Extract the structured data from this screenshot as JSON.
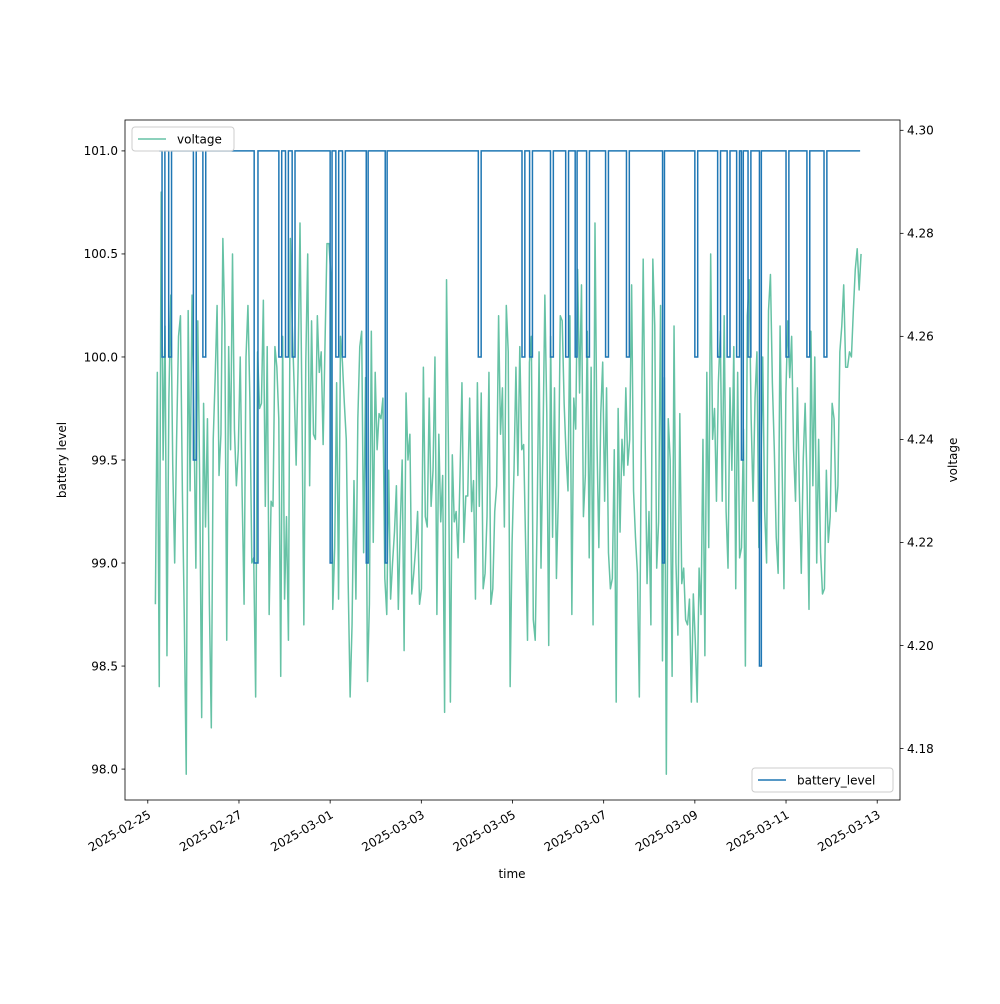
{
  "chart_data": {
    "type": "line",
    "xlabel": "time",
    "ylabel_left": "battery level",
    "ylabel_right": "voltage",
    "x_ticks": [
      "2025-02-25",
      "2025-02-27",
      "2025-03-01",
      "2025-03-03",
      "2025-03-05",
      "2025-03-07",
      "2025-03-09",
      "2025-03-11",
      "2025-03-13"
    ],
    "y_left_ticks": [
      "98.0",
      "98.5",
      "99.0",
      "99.5",
      "100.0",
      "100.5",
      "101.0"
    ],
    "y_right_ticks": [
      "4.18",
      "4.20",
      "4.22",
      "4.24",
      "4.26",
      "4.28",
      "4.30"
    ],
    "xlim": [
      "2025-02-24T12:00",
      "2025-03-13T12:00"
    ],
    "ylim_left": [
      97.85,
      101.15
    ],
    "ylim_right": [
      4.17,
      4.302
    ],
    "legend_left": "top-left",
    "legend_right": "bottom-right",
    "grid": false,
    "series": [
      {
        "name": "battery_level",
        "axis": "left",
        "color": "#1f77b4",
        "x_start": "2025-02-25T06:00",
        "x_end": "2025-03-12T15:00",
        "baseline": 101,
        "dips": [
          {
            "start": "2025-02-25T07:30",
            "end": "2025-02-25T09:00",
            "value": 100
          },
          {
            "start": "2025-02-25T11:00",
            "end": "2025-02-25T12:30",
            "value": 100
          },
          {
            "start": "2025-02-26T00:00",
            "end": "2025-02-26T01:30",
            "value": 99.5
          },
          {
            "start": "2025-02-26T05:00",
            "end": "2025-02-26T06:30",
            "value": 100
          },
          {
            "start": "2025-02-27T08:00",
            "end": "2025-02-27T10:00",
            "value": 99
          },
          {
            "start": "2025-02-27T21:00",
            "end": "2025-02-27T22:30",
            "value": 100
          },
          {
            "start": "2025-02-28T00:30",
            "end": "2025-02-28T02:00",
            "value": 100
          },
          {
            "start": "2025-02-28T04:00",
            "end": "2025-02-28T05:30",
            "value": 100
          },
          {
            "start": "2025-03-01T00:00",
            "end": "2025-03-01T01:00",
            "value": 99
          },
          {
            "start": "2025-03-01T03:00",
            "end": "2025-03-01T04:30",
            "value": 100
          },
          {
            "start": "2025-03-01T06:30",
            "end": "2025-03-01T08:00",
            "value": 100
          },
          {
            "start": "2025-03-01T19:00",
            "end": "2025-03-01T20:00",
            "value": 99
          },
          {
            "start": "2025-03-02T05:00",
            "end": "2025-03-02T06:00",
            "value": 99
          },
          {
            "start": "2025-03-04T06:00",
            "end": "2025-03-04T07:30",
            "value": 100
          },
          {
            "start": "2025-03-05T05:00",
            "end": "2025-03-05T06:30",
            "value": 100
          },
          {
            "start": "2025-03-05T09:00",
            "end": "2025-03-05T10:30",
            "value": 100
          },
          {
            "start": "2025-03-05T20:00",
            "end": "2025-03-05T21:30",
            "value": 100
          },
          {
            "start": "2025-03-06T04:00",
            "end": "2025-03-06T05:30",
            "value": 100
          },
          {
            "start": "2025-03-06T09:00",
            "end": "2025-03-06T10:00",
            "value": 100
          },
          {
            "start": "2025-03-06T15:00",
            "end": "2025-03-06T16:30",
            "value": 100
          },
          {
            "start": "2025-03-07T01:00",
            "end": "2025-03-07T02:30",
            "value": 100
          },
          {
            "start": "2025-03-07T12:00",
            "end": "2025-03-07T13:30",
            "value": 100
          },
          {
            "start": "2025-03-08T07:00",
            "end": "2025-03-08T08:00",
            "value": 99
          },
          {
            "start": "2025-03-09T00:00",
            "end": "2025-03-09T01:30",
            "value": 100
          },
          {
            "start": "2025-03-09T12:00",
            "end": "2025-03-09T13:30",
            "value": 100
          },
          {
            "start": "2025-03-09T17:00",
            "end": "2025-03-09T18:30",
            "value": 100
          },
          {
            "start": "2025-03-09T22:00",
            "end": "2025-03-09T23:30",
            "value": 100
          },
          {
            "start": "2025-03-10T00:30",
            "end": "2025-03-10T01:30",
            "value": 99.5
          },
          {
            "start": "2025-03-10T04:00",
            "end": "2025-03-10T05:30",
            "value": 100
          },
          {
            "start": "2025-03-10T10:00",
            "end": "2025-03-10T11:00",
            "value": 98.5
          },
          {
            "start": "2025-03-11T00:00",
            "end": "2025-03-11T01:30",
            "value": 100
          },
          {
            "start": "2025-03-11T11:00",
            "end": "2025-03-11T12:30",
            "value": 100
          },
          {
            "start": "2025-03-11T20:00",
            "end": "2025-03-11T21:30",
            "value": 100
          }
        ]
      },
      {
        "name": "voltage",
        "axis": "right",
        "color": "#66c2a5",
        "x_start": "2025-02-25T04:00",
        "x_end": "2025-03-12T15:30",
        "values": [
          4.208,
          4.253,
          4.192,
          4.288,
          4.236,
          4.262,
          4.198,
          4.248,
          4.268,
          4.235,
          4.216,
          4.24,
          4.26,
          4.264,
          4.23,
          4.205,
          4.175,
          4.265,
          4.23,
          4.268,
          4.244,
          4.215,
          4.263,
          4.231,
          4.186,
          4.247,
          4.223,
          4.244,
          4.208,
          4.184,
          4.24,
          4.252,
          4.266,
          4.233,
          4.241,
          4.279,
          4.262,
          4.201,
          4.258,
          4.238,
          4.276,
          4.242,
          4.231,
          4.238,
          4.256,
          4.229,
          4.208,
          4.256,
          4.266,
          4.248,
          4.216,
          4.217,
          4.19,
          4.257,
          4.246,
          4.247,
          4.267,
          4.227,
          4.258,
          4.206,
          4.228,
          4.227,
          4.258,
          4.254,
          4.244,
          4.194,
          4.26,
          4.209,
          4.225,
          4.201,
          4.279,
          4.262,
          4.25,
          4.235,
          4.254,
          4.282,
          4.247,
          4.204,
          4.255,
          4.276,
          4.231,
          4.263,
          4.241,
          4.24,
          4.264,
          4.253,
          4.257,
          4.239,
          4.259,
          4.278,
          4.278,
          4.272,
          4.207,
          4.219,
          4.251,
          4.209,
          4.26,
          4.255,
          4.247,
          4.24,
          4.212,
          4.19,
          4.204,
          4.232,
          4.209,
          4.244,
          4.258,
          4.261,
          4.218,
          4.252,
          4.193,
          4.208,
          4.261,
          4.22,
          4.253,
          4.238,
          4.245,
          4.244,
          4.248,
          4.213,
          4.206,
          4.234,
          4.209,
          4.216,
          4.222,
          4.231,
          4.207,
          4.223,
          4.236,
          4.199,
          4.249,
          4.236,
          4.241,
          4.21,
          4.214,
          4.219,
          4.226,
          4.208,
          4.211,
          4.254,
          4.225,
          4.223,
          4.248,
          4.227,
          4.234,
          4.256,
          4.206,
          4.241,
          4.224,
          4.233,
          4.187,
          4.271,
          4.238,
          4.189,
          4.237,
          4.224,
          4.226,
          4.217,
          4.233,
          4.251,
          4.22,
          4.229,
          4.229,
          4.248,
          4.226,
          4.232,
          4.209,
          4.251,
          4.227,
          4.249,
          4.211,
          4.214,
          4.225,
          4.253,
          4.208,
          4.211,
          4.226,
          4.231,
          4.264,
          4.241,
          4.25,
          4.223,
          4.266,
          4.257,
          4.192,
          4.22,
          4.234,
          4.254,
          4.233,
          4.258,
          4.238,
          4.239,
          4.22,
          4.201,
          4.255,
          4.26,
          4.205,
          4.201,
          4.225,
          4.257,
          4.215,
          4.239,
          4.268,
          4.245,
          4.2,
          4.26,
          4.221,
          4.25,
          4.213,
          4.229,
          4.264,
          4.263,
          4.247,
          4.237,
          4.23,
          4.264,
          4.206,
          4.248,
          4.242,
          4.273,
          4.249,
          4.27,
          4.225,
          4.233,
          4.261,
          4.217,
          4.254,
          4.204,
          4.282,
          4.24,
          4.219,
          4.245,
          4.255,
          4.228,
          4.25,
          4.218,
          4.211,
          4.213,
          4.238,
          4.189,
          4.246,
          4.222,
          4.24,
          4.233,
          4.25,
          4.235,
          4.24,
          4.27,
          4.23,
          4.221,
          4.214,
          4.19,
          4.238,
          4.275,
          4.24,
          4.212,
          4.226,
          4.204,
          4.275,
          4.262,
          4.215,
          4.224,
          4.266,
          4.197,
          4.252,
          4.175,
          4.244,
          4.236,
          4.194,
          4.262,
          4.216,
          4.202,
          4.245,
          4.212,
          4.215,
          4.205,
          4.204,
          4.209,
          4.189,
          4.21,
          4.201,
          4.189,
          4.215,
          4.206,
          4.24,
          4.198,
          4.253,
          4.219,
          4.276,
          4.24,
          4.246,
          4.228,
          4.251,
          4.261,
          4.228,
          4.264,
          4.226,
          4.215,
          4.25,
          4.234,
          4.258,
          4.211,
          4.253,
          4.217,
          4.219,
          4.242,
          4.196,
          4.264,
          4.271,
          4.244,
          4.228,
          4.248,
          4.257,
          4.219,
          4.232,
          4.256,
          4.226,
          4.216,
          4.265,
          4.272,
          4.251,
          4.238,
          4.221,
          4.214,
          4.262,
          4.236,
          4.211,
          4.249,
          4.263,
          4.252,
          4.26,
          4.238,
          4.228,
          4.25,
          4.23,
          4.214,
          4.236,
          4.247,
          4.231,
          4.207,
          4.261,
          4.231,
          4.256,
          4.216,
          4.24,
          4.218,
          4.21,
          4.211,
          4.234,
          4.22,
          4.225,
          4.247,
          4.244,
          4.226,
          4.231,
          4.257,
          4.262,
          4.27,
          4.254,
          4.254,
          4.257,
          4.256,
          4.265,
          4.273,
          4.277,
          4.269,
          4.276
        ]
      }
    ]
  }
}
